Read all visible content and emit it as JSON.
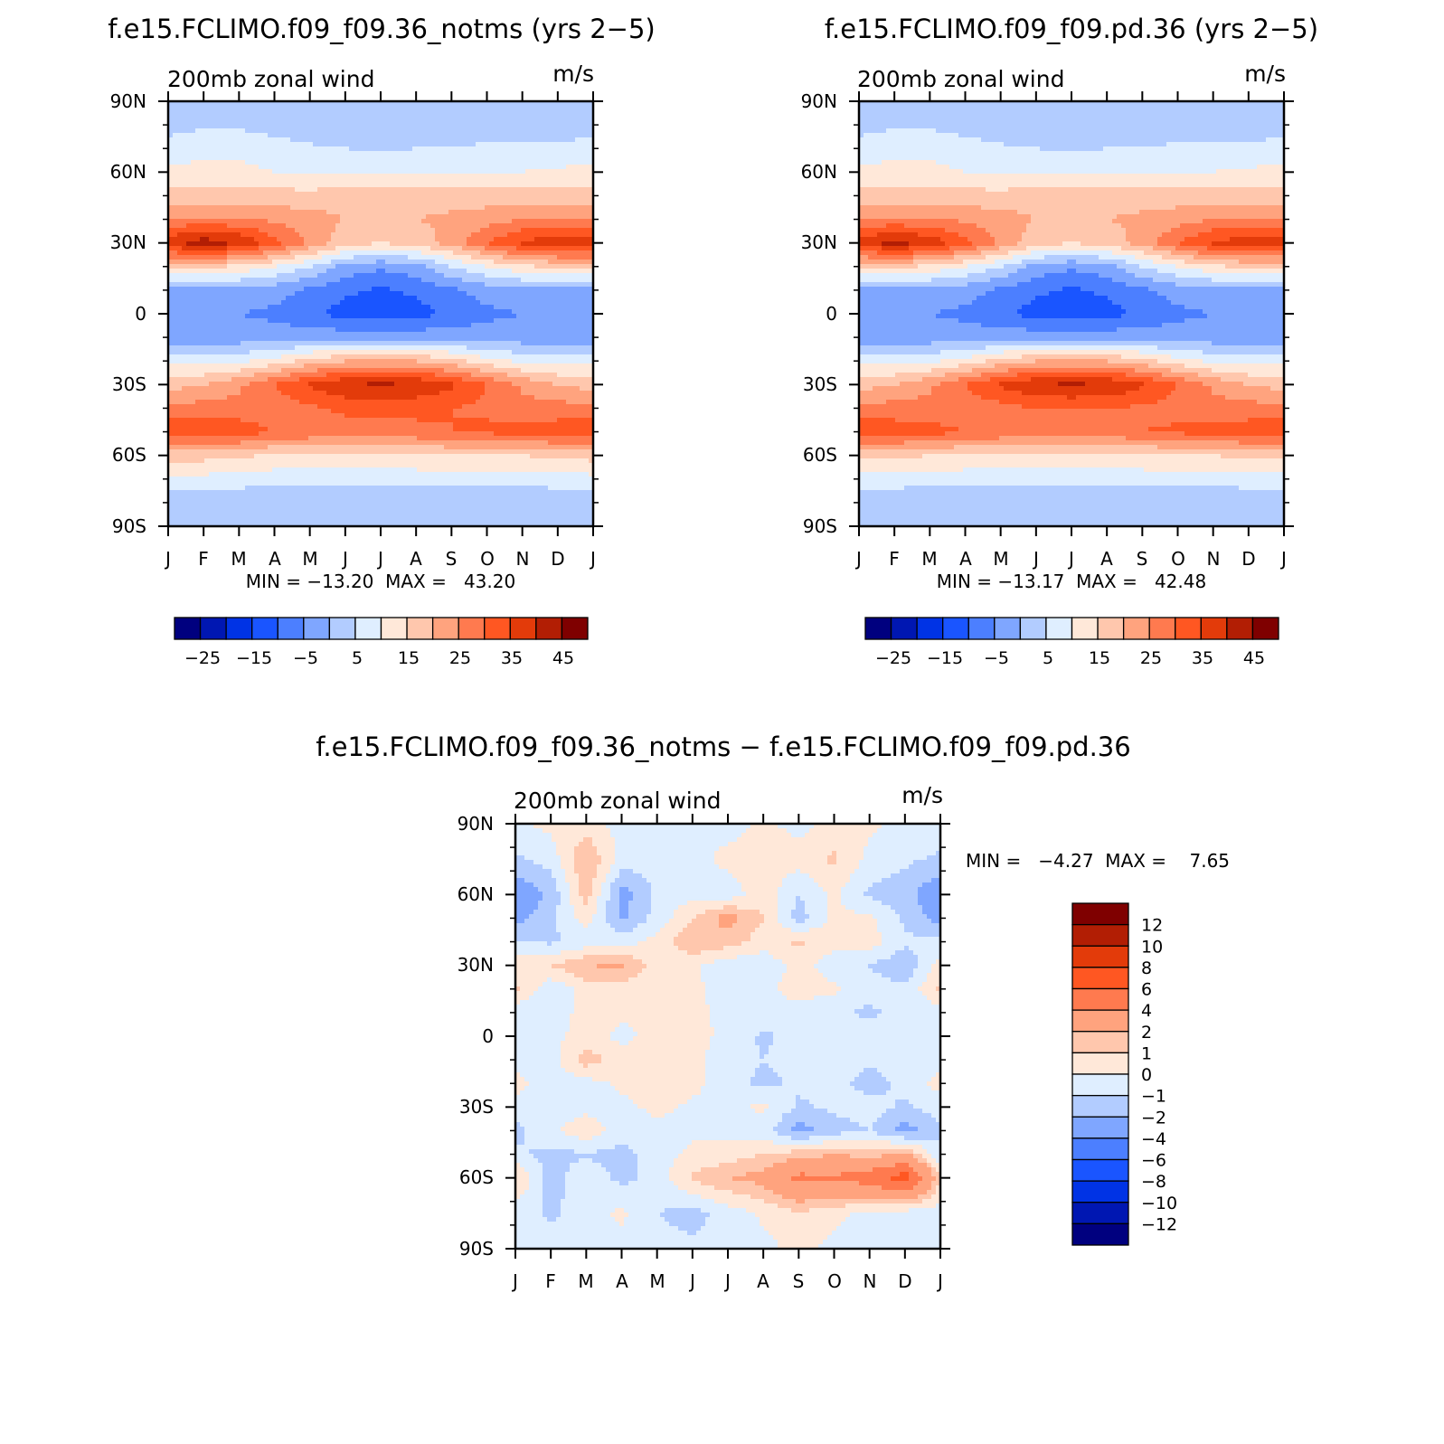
{
  "scale": {
    "main": {
      "colors": [
        "#00007f",
        "#0017b2",
        "#0033e5",
        "#1a55ff",
        "#4c7fff",
        "#7fa6ff",
        "#b2ccff",
        "#dfeeff",
        "#ffe8d9",
        "#ffc7ad",
        "#ffa37e",
        "#ff7a4f",
        "#ff5722",
        "#e33b0a",
        "#b21e04",
        "#7f0000"
      ],
      "labels": [
        "−25",
        "−15",
        "−5",
        "5",
        "15",
        "25",
        "35",
        "45"
      ]
    },
    "diff": {
      "colors": [
        "#00007f",
        "#0017b2",
        "#0033e5",
        "#1a55ff",
        "#4c7fff",
        "#7fa6ff",
        "#b2ccff",
        "#dfeeff",
        "#ffe8d9",
        "#ffc7ad",
        "#ffa37e",
        "#ff7a4f",
        "#ff5722",
        "#e33b0a",
        "#b21e04",
        "#7f0000"
      ],
      "labels_top_down": [
        "12",
        "10",
        "8",
        "6",
        "4",
        "2",
        "1",
        "0",
        "−1",
        "−2",
        "−4",
        "−6",
        "−8",
        "−10",
        "−12"
      ]
    }
  },
  "panels": [
    {
      "title": "f.e15.FCLIMO.f09_f09.36_notms (yrs 2−5)",
      "subtitle_left": "200mb zonal wind",
      "subtitle_right": "m/s",
      "stats": "MIN = −13.20  MAX =   43.20"
    },
    {
      "title": "f.e15.FCLIMO.f09_f09.pd.36 (yrs 2−5)",
      "subtitle_left": "200mb zonal wind",
      "subtitle_right": "m/s",
      "stats": "MIN = −13.17  MAX =   42.48"
    },
    {
      "title": "f.e15.FCLIMO.f09_f09.36_notms − f.e15.FCLIMO.f09_f09.pd.36",
      "subtitle_left": "200mb zonal wind",
      "subtitle_right": "m/s",
      "stats": "MIN =   −4.27  MAX =    7.65"
    }
  ],
  "chart_data": [
    {
      "type": "heatmap",
      "title": "f.e15.FCLIMO.f09_f09.36_notms (yrs 2−5)",
      "variable": "200mb zonal wind",
      "units": "m/s",
      "x_ticks": [
        "J",
        "F",
        "M",
        "A",
        "M",
        "J",
        "J",
        "A",
        "S",
        "O",
        "N",
        "D",
        "J"
      ],
      "y_ticks": [
        "90N",
        "60N",
        "30N",
        "0",
        "30S",
        "60S",
        "90S"
      ],
      "xlim": [
        0,
        12
      ],
      "ylim": [
        -90,
        90
      ],
      "color_levels": [
        -30,
        -25,
        -20,
        -15,
        -10,
        -5,
        0,
        5,
        10,
        15,
        20,
        25,
        30,
        35,
        40,
        45
      ],
      "min": -13.2,
      "max": 43.2,
      "x": [
        0,
        1,
        2,
        3,
        4,
        5,
        6,
        7,
        8,
        9,
        10,
        11,
        12
      ],
      "y": [
        -90,
        -75,
        -60,
        -50,
        -40,
        -30,
        -20,
        -10,
        0,
        10,
        20,
        30,
        40,
        50,
        60,
        75,
        90
      ],
      "z": [
        [
          0,
          0,
          0,
          0,
          0,
          0,
          0,
          0,
          0,
          0,
          0,
          0,
          0
        ],
        [
          4,
          4,
          4,
          4,
          4,
          4,
          4,
          4,
          4,
          4,
          4,
          4,
          4
        ],
        [
          17,
          17,
          16,
          14,
          14,
          14,
          14,
          14,
          15,
          15,
          15,
          16,
          17
        ],
        [
          34,
          34,
          33,
          30,
          29,
          28,
          28,
          29,
          30,
          31,
          32,
          33,
          34
        ],
        [
          27,
          27,
          27,
          27,
          29,
          31,
          31,
          31,
          30,
          29,
          27,
          27,
          27
        ],
        [
          18,
          20,
          24,
          30,
          36,
          40,
          41,
          40,
          36,
          30,
          24,
          20,
          18
        ],
        [
          8,
          8,
          9,
          12,
          17,
          20,
          21,
          20,
          17,
          12,
          9,
          8,
          8
        ],
        [
          -3,
          -3,
          -3,
          -3,
          -2,
          -2,
          -2,
          -2,
          -2,
          -3,
          -3,
          -3,
          -3
        ],
        [
          -4,
          -4,
          -5,
          -6,
          -9,
          -12,
          -13,
          -12,
          -9,
          -6,
          -5,
          -4,
          -4
        ],
        [
          -1,
          -1,
          -2,
          -3,
          -6,
          -9,
          -11,
          -9,
          -6,
          -3,
          -2,
          -1,
          -1
        ],
        [
          16,
          16,
          14,
          10,
          5,
          -2,
          -4,
          -2,
          5,
          10,
          14,
          16,
          16
        ],
        [
          39,
          43,
          40,
          32,
          24,
          17,
          15,
          17,
          22,
          30,
          36,
          39,
          39
        ],
        [
          26,
          26,
          26,
          24,
          22,
          20,
          19,
          20,
          21,
          23,
          25,
          26,
          26
        ],
        [
          17,
          17,
          17,
          17,
          17,
          18,
          18,
          18,
          18,
          17,
          17,
          17,
          17
        ],
        [
          11,
          12,
          12,
          10,
          9,
          9,
          9,
          9,
          9,
          10,
          10,
          11,
          11
        ],
        [
          5,
          6,
          6,
          5,
          4,
          3,
          2,
          3,
          3,
          4,
          4,
          4,
          5
        ],
        [
          1,
          1,
          1,
          1,
          1,
          1,
          1,
          1,
          1,
          1,
          1,
          1,
          1
        ]
      ]
    },
    {
      "type": "heatmap",
      "title": "f.e15.FCLIMO.f09_f09.pd.36 (yrs 2−5)",
      "variable": "200mb zonal wind",
      "units": "m/s",
      "x_ticks": [
        "J",
        "F",
        "M",
        "A",
        "M",
        "J",
        "J",
        "A",
        "S",
        "O",
        "N",
        "D",
        "J"
      ],
      "y_ticks": [
        "90N",
        "60N",
        "30N",
        "0",
        "30S",
        "60S",
        "90S"
      ],
      "xlim": [
        0,
        12
      ],
      "ylim": [
        -90,
        90
      ],
      "color_levels": [
        -30,
        -25,
        -20,
        -15,
        -10,
        -5,
        0,
        5,
        10,
        15,
        20,
        25,
        30,
        35,
        40,
        45
      ],
      "min": -13.17,
      "max": 42.48,
      "x": [
        0,
        1,
        2,
        3,
        4,
        5,
        6,
        7,
        8,
        9,
        10,
        11,
        12
      ],
      "y": [
        -90,
        -75,
        -60,
        -50,
        -40,
        -30,
        -20,
        -10,
        0,
        10,
        20,
        30,
        40,
        50,
        60,
        75,
        90
      ],
      "z": [
        [
          0,
          0,
          0,
          0,
          0,
          0,
          0,
          0,
          0,
          0,
          0,
          0,
          0
        ],
        [
          4,
          4,
          4,
          4,
          4,
          4,
          3,
          3,
          4,
          4,
          4,
          4,
          4
        ],
        [
          16,
          16,
          15,
          14,
          14,
          14,
          14,
          14,
          14,
          15,
          15,
          16,
          16
        ],
        [
          33,
          33,
          32,
          30,
          29,
          28,
          28,
          28,
          30,
          31,
          32,
          33,
          33
        ],
        [
          27,
          27,
          27,
          27,
          28,
          30,
          30,
          30,
          29,
          28,
          27,
          27,
          27
        ],
        [
          18,
          20,
          24,
          30,
          36,
          40,
          41,
          40,
          36,
          30,
          24,
          20,
          18
        ],
        [
          8,
          8,
          9,
          12,
          17,
          20,
          21,
          20,
          17,
          12,
          9,
          8,
          8
        ],
        [
          -3,
          -3,
          -3,
          -3,
          -2,
          -2,
          -2,
          -2,
          -2,
          -3,
          -3,
          -3,
          -3
        ],
        [
          -4,
          -4,
          -5,
          -6,
          -9,
          -12,
          -13,
          -12,
          -9,
          -6,
          -5,
          -4,
          -4
        ],
        [
          -1,
          -1,
          -2,
          -3,
          -6,
          -9,
          -11,
          -9,
          -6,
          -3,
          -2,
          -1,
          -1
        ],
        [
          16,
          16,
          14,
          10,
          5,
          -2,
          -4,
          -2,
          5,
          10,
          14,
          16,
          16
        ],
        [
          38,
          42,
          39,
          32,
          24,
          17,
          15,
          17,
          22,
          30,
          36,
          38,
          38
        ],
        [
          26,
          26,
          26,
          24,
          22,
          20,
          19,
          20,
          21,
          23,
          25,
          26,
          26
        ],
        [
          17,
          17,
          17,
          17,
          17,
          18,
          18,
          18,
          18,
          17,
          17,
          17,
          17
        ],
        [
          11,
          12,
          12,
          10,
          9,
          9,
          9,
          9,
          9,
          10,
          10,
          11,
          11
        ],
        [
          5,
          6,
          6,
          5,
          4,
          3,
          2,
          3,
          3,
          4,
          4,
          4,
          5
        ],
        [
          1,
          1,
          1,
          1,
          1,
          1,
          1,
          1,
          1,
          1,
          1,
          1,
          1
        ]
      ]
    },
    {
      "type": "heatmap",
      "title": "f.e15.FCLIMO.f09_f09.36_notms − f.e15.FCLIMO.f09_f09.pd.36",
      "variable": "200mb zonal wind",
      "units": "m/s",
      "x_ticks": [
        "J",
        "F",
        "M",
        "A",
        "M",
        "J",
        "J",
        "A",
        "S",
        "O",
        "N",
        "D",
        "J"
      ],
      "y_ticks": [
        "90N",
        "60N",
        "30N",
        "0",
        "30S",
        "60S",
        "90S"
      ],
      "xlim": [
        0,
        12
      ],
      "ylim": [
        -90,
        90
      ],
      "color_levels": [
        -14,
        -12,
        -10,
        -8,
        -6,
        -4,
        -2,
        -1,
        0,
        1,
        2,
        4,
        6,
        8,
        10,
        12,
        14
      ],
      "min": -4.27,
      "max": 7.65,
      "x": [
        0,
        1,
        2,
        3,
        4,
        5,
        6,
        7,
        8,
        9,
        10,
        11,
        12
      ],
      "y": [
        -90,
        -75,
        -60,
        -50,
        -40,
        -30,
        -20,
        -10,
        0,
        10,
        20,
        30,
        40,
        50,
        60,
        75,
        90
      ],
      "z": [
        [
          -0.3,
          -0.5,
          -0.4,
          -0.3,
          -0.5,
          -0.8,
          -0.5,
          -0.3,
          0.3,
          -0.3,
          -0.6,
          -0.4,
          -0.3
        ],
        [
          -0.5,
          -1.2,
          -0.4,
          0.2,
          -1.0,
          -1.4,
          -0.6,
          0.2,
          0.8,
          0.3,
          -0.4,
          -0.6,
          -0.5
        ],
        [
          1.2,
          -1.5,
          -0.3,
          -1.3,
          -0.6,
          1.2,
          2.0,
          2.5,
          4.5,
          4.2,
          5.0,
          7.0,
          1.2
        ],
        [
          -0.8,
          -1.3,
          -1.1,
          -1.4,
          -0.5,
          0.2,
          0.4,
          1.0,
          1.5,
          2.0,
          1.5,
          2.2,
          -0.8
        ],
        [
          -1.3,
          -0.3,
          0.8,
          -0.6,
          -0.4,
          -0.2,
          -0.2,
          -0.5,
          -2.5,
          -1.5,
          -1.0,
          -2.5,
          -1.3
        ],
        [
          -0.5,
          -0.6,
          -0.4,
          -0.3,
          0.3,
          -0.2,
          -0.3,
          0.2,
          -1.2,
          -0.8,
          -0.5,
          -1.2,
          -0.5
        ],
        [
          0.4,
          -0.6,
          -0.4,
          0.2,
          0.5,
          0.3,
          -0.6,
          -1.3,
          -0.8,
          -0.5,
          -1.5,
          -0.7,
          0.4
        ],
        [
          -0.4,
          -0.5,
          1.5,
          0.5,
          0.4,
          0.2,
          -0.4,
          -1.0,
          -0.6,
          -0.4,
          -0.8,
          -0.5,
          -0.4
        ],
        [
          -0.8,
          -0.3,
          0.5,
          -0.3,
          0.4,
          0.4,
          -0.3,
          -1.2,
          -0.5,
          -0.3,
          -0.5,
          -0.6,
          -0.8
        ],
        [
          -0.6,
          -0.8,
          0.5,
          0.2,
          0.4,
          0.2,
          -0.2,
          -0.6,
          -0.4,
          -0.8,
          -1.2,
          -0.6,
          -0.6
        ],
        [
          1.2,
          -0.8,
          0.4,
          0.5,
          0.5,
          0.2,
          -0.4,
          -0.3,
          0.5,
          0.2,
          -0.6,
          -0.8,
          1.2
        ],
        [
          0.5,
          1.0,
          2.0,
          2.2,
          0.4,
          0.2,
          -0.6,
          -0.8,
          0.4,
          -0.6,
          -1.0,
          -1.8,
          0.5
        ],
        [
          -0.8,
          -1.2,
          -0.7,
          -0.4,
          0.3,
          2.0,
          1.5,
          0.5,
          1.2,
          0.4,
          0.5,
          -0.8,
          -0.8
        ],
        [
          -2.5,
          -1.2,
          0.5,
          -2.2,
          -0.6,
          1.0,
          2.5,
          1.0,
          -1.5,
          0.3,
          0.2,
          -1.2,
          -2.5
        ],
        [
          -3.0,
          -1.8,
          1.5,
          -2.5,
          -0.8,
          -0.4,
          -0.6,
          0.6,
          -1.0,
          0.2,
          -1.2,
          -1.6,
          -3.0
        ],
        [
          -1.2,
          -0.6,
          2.0,
          -0.4,
          -0.7,
          -0.4,
          0.3,
          0.5,
          0.4,
          1.2,
          -0.3,
          -0.8,
          -1.2
        ],
        [
          -0.2,
          0.3,
          0.5,
          -0.4,
          -0.3,
          -0.2,
          -0.4,
          0.2,
          -0.3,
          0.3,
          0.2,
          -0.3,
          -0.2
        ]
      ]
    }
  ]
}
